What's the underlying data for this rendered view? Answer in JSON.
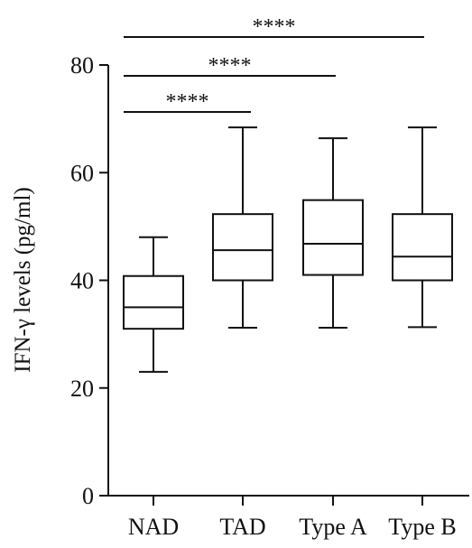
{
  "chart_data": {
    "type": "box",
    "title": "",
    "ylabel": "IFN-γ levels (pg/ml)",
    "xlabel": "",
    "ylim": [
      0,
      80
    ],
    "yticks": [
      0,
      20,
      40,
      60,
      80
    ],
    "categories": [
      "NAD",
      "TAD",
      "Type A",
      "Type B"
    ],
    "boxes": [
      {
        "category": "NAD",
        "min": 23.0,
        "q1": 31.0,
        "median": 35.0,
        "q3": 40.8,
        "max": 48.0
      },
      {
        "category": "TAD",
        "min": 31.2,
        "q1": 40.0,
        "median": 45.6,
        "q3": 52.3,
        "max": 68.4
      },
      {
        "category": "Type A",
        "min": 31.2,
        "q1": 41.0,
        "median": 46.8,
        "q3": 54.9,
        "max": 66.4
      },
      {
        "category": "Type B",
        "min": 31.3,
        "q1": 40.0,
        "median": 44.4,
        "q3": 52.3,
        "max": 68.4
      }
    ],
    "significance": [
      {
        "from": "NAD",
        "to": "Type B",
        "label": "****"
      },
      {
        "from": "NAD",
        "to": "Type A",
        "label": "****"
      },
      {
        "from": "NAD",
        "to": "TAD",
        "label": "****"
      }
    ],
    "colors": {
      "stroke": "#111111",
      "fill": "#ffffff"
    }
  }
}
